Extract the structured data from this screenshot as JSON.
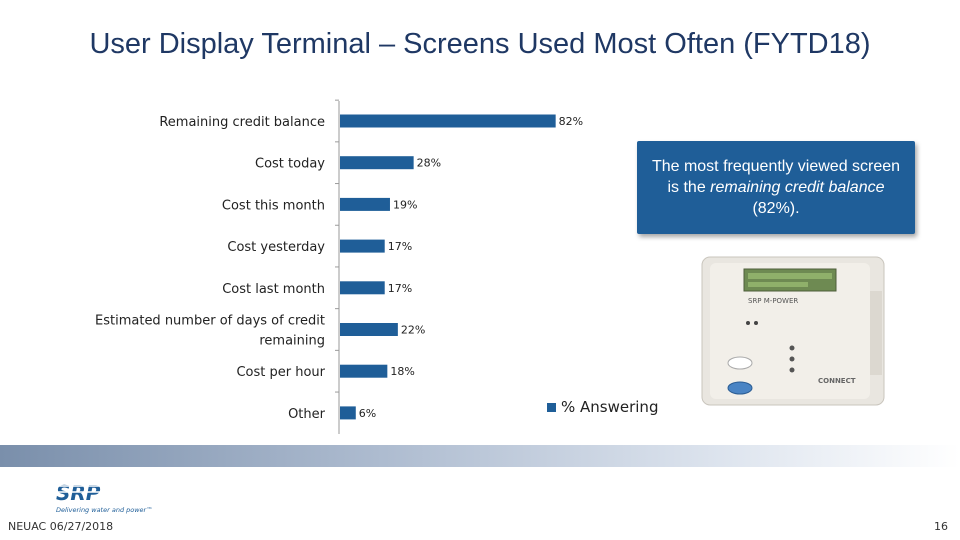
{
  "slide": {
    "title": "User Display Terminal – Screens Used Most Often (FYTD18)",
    "footer_left": "NEUAC 06/27/2018",
    "page_number": "16"
  },
  "callout": {
    "line1": "The most frequently viewed screen is the ",
    "italic": "remaining credit balance",
    "line2": " (82%)."
  },
  "legend": {
    "label": "% Answering"
  },
  "logo": {
    "text": "SRP",
    "tagline": "Delivering water and power™"
  },
  "device": {
    "screen_text": "SRP M-POWER",
    "brand_text": "CONNECT"
  },
  "colors": {
    "bar": "#1f5e98",
    "title": "#1f3864",
    "callout_bg": "#1f5e98"
  },
  "chart_data": {
    "type": "bar",
    "orientation": "horizontal",
    "categories": [
      "Remaining credit balance",
      "Cost today",
      "Cost this month",
      "Cost yesterday",
      "Cost last month",
      "Estimated number of days of credit remaining",
      "Cost per hour",
      "Other"
    ],
    "series": [
      {
        "name": "% Answering",
        "values": [
          82,
          28,
          19,
          17,
          17,
          22,
          18,
          6
        ],
        "labels": [
          "82%",
          "28%",
          "19%",
          "17%",
          "17%",
          "22%",
          "18%",
          "6%"
        ]
      }
    ],
    "xlim": [
      0,
      100
    ],
    "grid": false,
    "legend": "bottom-right"
  }
}
